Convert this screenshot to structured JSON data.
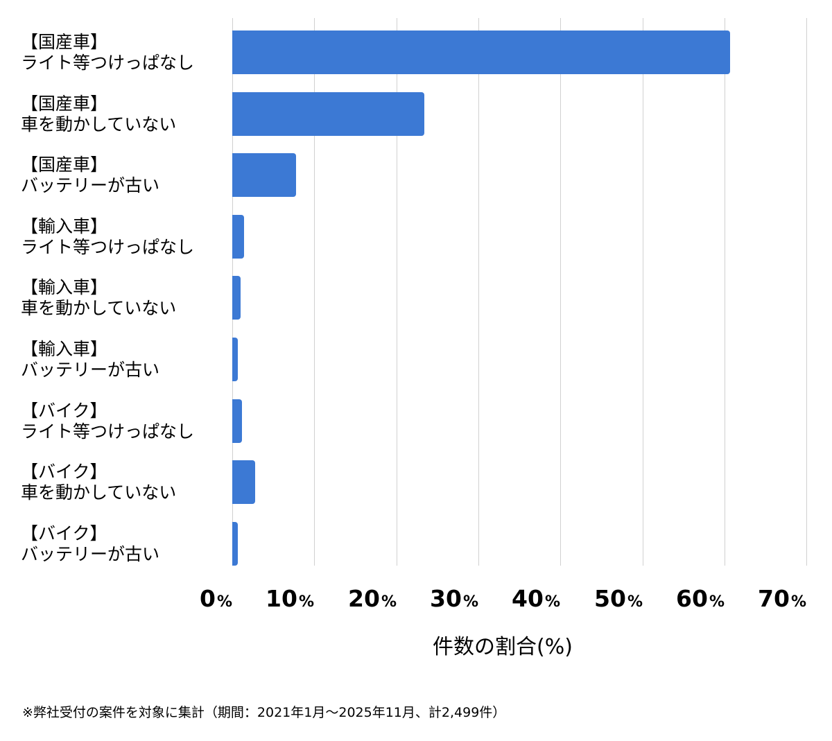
{
  "chart_data": {
    "type": "bar",
    "orientation": "horizontal",
    "title": "",
    "xlabel": "件数の割合(%)",
    "ylabel": "",
    "xlim": [
      0,
      70
    ],
    "xticks": [
      "0",
      "10",
      "20",
      "30",
      "40",
      "50",
      "60",
      "70"
    ],
    "tick_suffix": "%",
    "grid": true,
    "legend": null,
    "bar_color": "#3c79d4",
    "categories": [
      {
        "group": "【国産車】",
        "label": "ライト等つけっぱなし"
      },
      {
        "group": "【国産車】",
        "label": "車を動かしていない"
      },
      {
        "group": "【国産車】",
        "label": "バッテリーが古い"
      },
      {
        "group": "【輸入車】",
        "label": "ライト等つけっぱなし"
      },
      {
        "group": "【輸入車】",
        "label": "車を動かしていない"
      },
      {
        "group": "【輸入車】",
        "label": "バッテリーが古い"
      },
      {
        "group": "【バイク】",
        "label": "ライト等つけっぱなし"
      },
      {
        "group": "【バイク】",
        "label": "車を動かしていない"
      },
      {
        "group": "【バイク】",
        "label": "バッテリーが古い"
      }
    ],
    "values": [
      60.7,
      23.4,
      7.8,
      1.4,
      1.0,
      0.7,
      1.2,
      2.8,
      0.7
    ],
    "footnote": "※弊社受付の案件を対象に集計（期間：2021年1月〜2025年11月、計2,499件）"
  }
}
